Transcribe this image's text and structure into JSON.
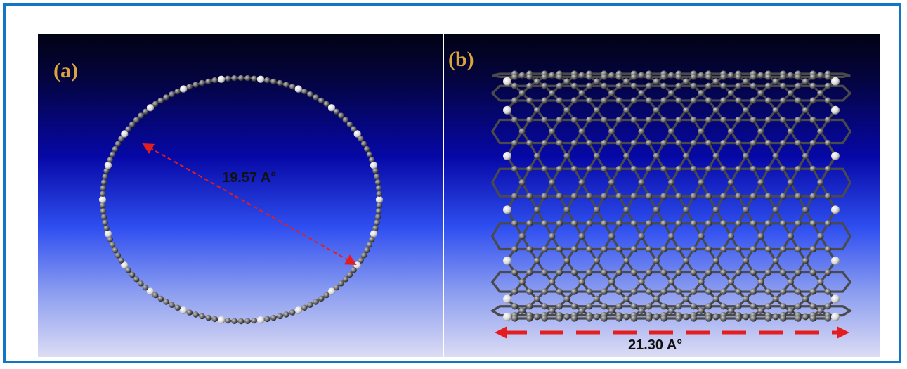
{
  "panel_a": {
    "label": "(a)",
    "measurement": "19.57 A°"
  },
  "panel_b": {
    "label": "(b)",
    "measurement": "21.30 A°"
  },
  "colors": {
    "frame": "#1176c4",
    "panel_label": "#d9a43d",
    "arrow": "#e41e1e",
    "carbon_atom": "#6a6a6a",
    "hydrogen_atom": "#e8e8e8"
  }
}
